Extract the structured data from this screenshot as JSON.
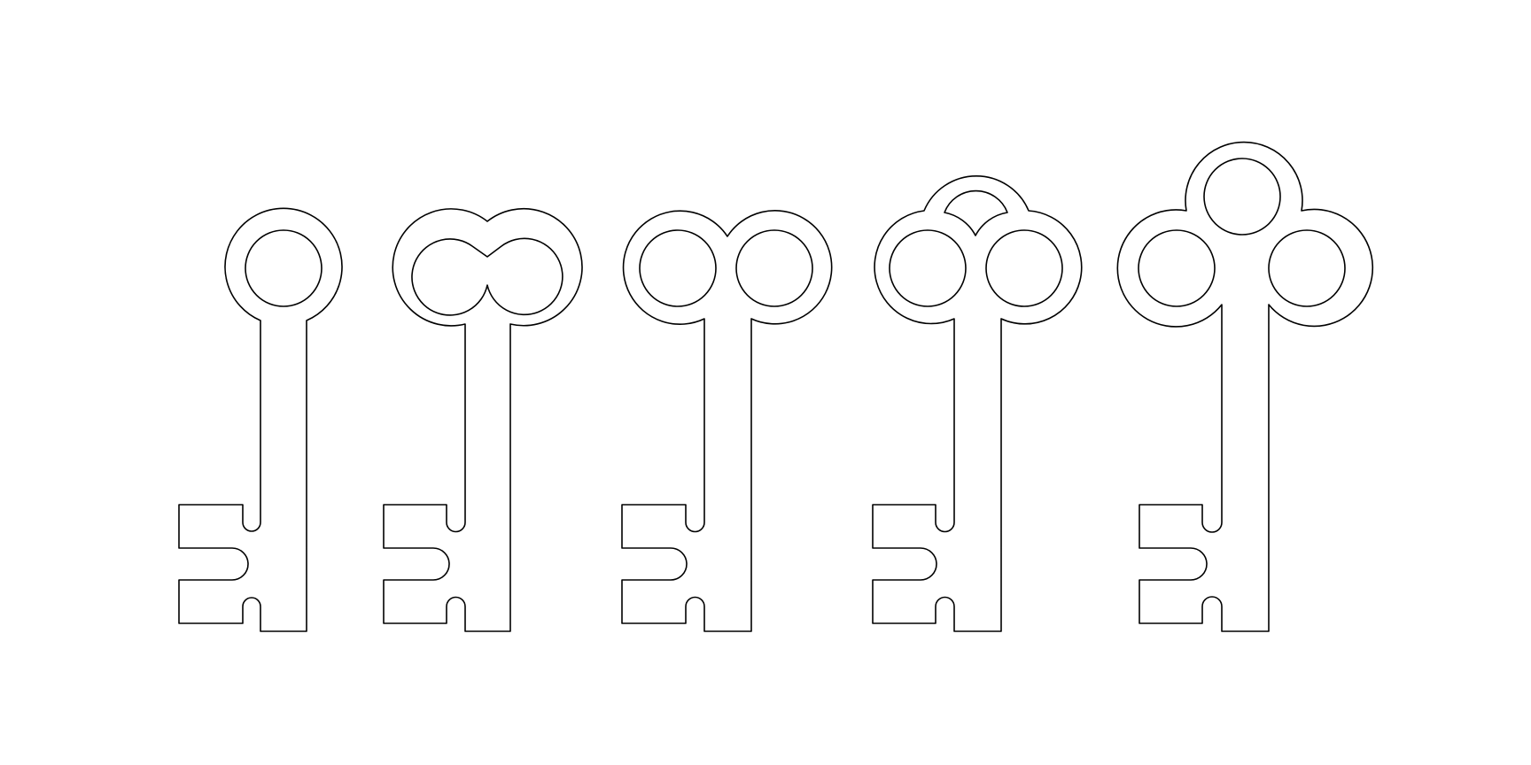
{
  "colors": {
    "background": "#ffffff",
    "stroke": "#000000"
  },
  "keys": [
    {
      "name": "key-single-ring-icon",
      "bow": "single-ring"
    },
    {
      "name": "key-joined-double-ring-icon",
      "bow": "joined-double-ring"
    },
    {
      "name": "key-double-ring-icon",
      "bow": "double-ring"
    },
    {
      "name": "key-double-ring-arch-icon",
      "bow": "double-ring-with-arch"
    },
    {
      "name": "key-triple-ring-icon",
      "bow": "triple-ring"
    }
  ]
}
